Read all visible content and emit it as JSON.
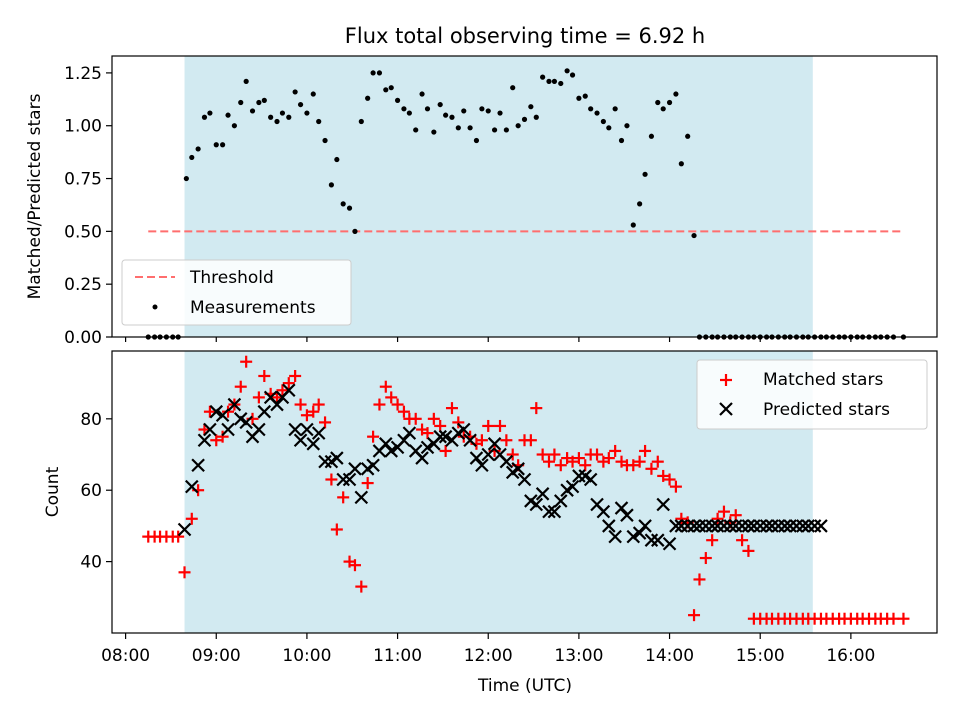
{
  "figure": {
    "title": "Flux total observing time = 6.92 h",
    "xlabel": "Time (UTC)"
  },
  "colors": {
    "shade": "#add8e6",
    "threshold": "#ff6e6e",
    "matched": "#ff0000",
    "predicted": "#000000",
    "measurement": "#000000"
  },
  "chart_data": [
    {
      "type": "scatter",
      "panel": "top",
      "ylabel": "Matched/Predicted stars",
      "xlim_hours": [
        7.85,
        16.95
      ],
      "ylim": [
        0.0,
        1.33
      ],
      "yticks": [
        0.0,
        0.25,
        0.5,
        0.75,
        1.0,
        1.25
      ],
      "ytick_labels": [
        "0.00",
        "0.25",
        "0.50",
        "0.75",
        "1.00",
        "1.25"
      ],
      "grid": false,
      "legend_position": "lower-left",
      "shaded_interval_hours": [
        8.65,
        15.58
      ],
      "threshold": {
        "name": "Threshold",
        "value": 0.5,
        "x_range_hours": [
          8.25,
          16.58
        ]
      },
      "series": [
        {
          "name": "Measurements",
          "marker": "dot",
          "x_hours": [
            8.25,
            8.32,
            8.38,
            8.45,
            8.52,
            8.58,
            8.67,
            8.73,
            8.8,
            8.87,
            8.93,
            9.0,
            9.07,
            9.13,
            9.2,
            9.27,
            9.33,
            9.4,
            9.47,
            9.53,
            9.6,
            9.67,
            9.73,
            9.8,
            9.87,
            9.93,
            10.0,
            10.07,
            10.13,
            10.2,
            10.27,
            10.33,
            10.4,
            10.47,
            10.53,
            10.6,
            10.67,
            10.73,
            10.8,
            10.87,
            10.93,
            11.0,
            11.07,
            11.13,
            11.2,
            11.27,
            11.33,
            11.4,
            11.47,
            11.53,
            11.6,
            11.67,
            11.73,
            11.8,
            11.87,
            11.93,
            12.0,
            12.07,
            12.13,
            12.2,
            12.27,
            12.33,
            12.4,
            12.47,
            12.53,
            12.6,
            12.67,
            12.73,
            12.8,
            12.87,
            12.93,
            13.0,
            13.07,
            13.13,
            13.2,
            13.27,
            13.33,
            13.4,
            13.47,
            13.53,
            13.6,
            13.67,
            13.73,
            13.8,
            13.87,
            13.93,
            14.0,
            14.07,
            14.13,
            14.2,
            14.27,
            14.33,
            14.4,
            14.47,
            14.53,
            14.6,
            14.67,
            14.73,
            14.8,
            14.87,
            14.93,
            15.0,
            15.07,
            15.13,
            15.2,
            15.27,
            15.33,
            15.4,
            15.47,
            15.53,
            15.6,
            15.67,
            15.73,
            15.8,
            15.87,
            15.93,
            16.0,
            16.07,
            16.13,
            16.2,
            16.27,
            16.33,
            16.4,
            16.47,
            16.58
          ],
          "y": [
            0.0,
            0.0,
            0.0,
            0.0,
            0.0,
            0.0,
            0.75,
            0.85,
            0.89,
            1.04,
            1.06,
            0.91,
            0.91,
            1.05,
            1.0,
            1.11,
            1.21,
            1.07,
            1.11,
            1.12,
            1.04,
            1.02,
            1.06,
            1.04,
            1.16,
            1.1,
            1.06,
            1.15,
            1.02,
            0.93,
            0.72,
            0.84,
            0.63,
            0.61,
            0.5,
            1.02,
            1.13,
            1.25,
            1.25,
            1.17,
            1.18,
            1.12,
            1.08,
            1.06,
            0.98,
            1.15,
            1.08,
            0.97,
            1.1,
            1.05,
            1.04,
            0.99,
            1.07,
            0.99,
            0.93,
            1.08,
            1.07,
            0.98,
            1.06,
            0.98,
            1.18,
            1.0,
            1.03,
            1.09,
            1.04,
            1.23,
            1.21,
            1.21,
            1.2,
            1.26,
            1.24,
            1.13,
            1.14,
            1.08,
            1.06,
            1.02,
            0.99,
            1.08,
            0.93,
            1.0,
            0.53,
            0.63,
            0.77,
            0.95,
            1.11,
            1.08,
            1.11,
            1.15,
            0.82,
            0.95,
            0.48,
            0.0,
            0.0,
            0.0,
            0.0,
            0.0,
            0.0,
            0.0,
            0.0,
            0.0,
            0.0,
            0.0,
            0.0,
            0.0,
            0.0,
            0.0,
            0.0,
            0.0,
            0.0,
            0.0,
            0.0,
            0.0,
            0.0,
            0.0,
            0.0,
            0.0,
            0.0,
            0.0,
            0.0,
            0.0,
            0.0,
            0.0,
            0.0,
            0.0,
            0.0
          ]
        }
      ]
    },
    {
      "type": "scatter",
      "panel": "bottom",
      "ylabel": "Count",
      "xlim_hours": [
        7.85,
        16.95
      ],
      "ylim": [
        20,
        99
      ],
      "yticks": [
        40,
        60,
        80
      ],
      "ytick_labels": [
        "40",
        "60",
        "80"
      ],
      "xticks_hours": [
        8,
        9,
        10,
        11,
        12,
        13,
        14,
        15,
        16
      ],
      "xtick_labels": [
        "08:00",
        "09:00",
        "10:00",
        "11:00",
        "12:00",
        "13:00",
        "14:00",
        "15:00",
        "16:00"
      ],
      "grid": false,
      "legend_position": "upper-right",
      "shaded_interval_hours": [
        8.65,
        15.58
      ],
      "series": [
        {
          "name": "Matched stars",
          "marker": "plus",
          "x_hours": [
            8.25,
            8.32,
            8.38,
            8.45,
            8.52,
            8.58,
            8.65,
            8.73,
            8.8,
            8.87,
            8.93,
            9.0,
            9.07,
            9.13,
            9.2,
            9.27,
            9.33,
            9.4,
            9.47,
            9.53,
            9.6,
            9.67,
            9.73,
            9.8,
            9.87,
            9.93,
            10.0,
            10.07,
            10.13,
            10.2,
            10.27,
            10.33,
            10.4,
            10.47,
            10.53,
            10.6,
            10.67,
            10.73,
            10.8,
            10.87,
            10.93,
            11.0,
            11.07,
            11.13,
            11.2,
            11.27,
            11.33,
            11.4,
            11.47,
            11.53,
            11.6,
            11.67,
            11.73,
            11.8,
            11.87,
            11.93,
            12.0,
            12.07,
            12.13,
            12.2,
            12.27,
            12.33,
            12.4,
            12.47,
            12.53,
            12.6,
            12.67,
            12.73,
            12.8,
            12.87,
            12.93,
            13.0,
            13.07,
            13.13,
            13.2,
            13.27,
            13.33,
            13.4,
            13.47,
            13.53,
            13.6,
            13.67,
            13.73,
            13.8,
            13.87,
            13.93,
            14.0,
            14.07,
            14.13,
            14.2,
            14.27,
            14.33,
            14.4,
            14.47,
            14.53,
            14.6,
            14.67,
            14.73,
            14.8,
            14.87,
            14.93,
            15.0,
            15.07,
            15.13,
            15.2,
            15.27,
            15.33,
            15.4,
            15.47,
            15.53,
            15.6,
            15.67,
            15.73,
            15.8,
            15.87,
            15.93,
            16.0,
            16.07,
            16.13,
            16.2,
            16.27,
            16.33,
            16.4,
            16.47,
            16.58
          ],
          "y": [
            47,
            47,
            47,
            47,
            47,
            47,
            37,
            52,
            60,
            77,
            82,
            74,
            75,
            82,
            84,
            89,
            96,
            80,
            86,
            92,
            87,
            86,
            88,
            90,
            92,
            84,
            81,
            82,
            84,
            79,
            63,
            49,
            58,
            40,
            39,
            33,
            62,
            75,
            84,
            89,
            86,
            84,
            82,
            80,
            80,
            77,
            76,
            80,
            78,
            71,
            83,
            79,
            75,
            75,
            73,
            74,
            78,
            71,
            78,
            74,
            70,
            67,
            74,
            74,
            83,
            70,
            68,
            70,
            67,
            69,
            68,
            69,
            67,
            70,
            70,
            68,
            69,
            71,
            68,
            67,
            67,
            68,
            71,
            66,
            68,
            64,
            63,
            61,
            52,
            51,
            25,
            35,
            41,
            46,
            52,
            54,
            51,
            53,
            46,
            43,
            24,
            24,
            24,
            24,
            24,
            24,
            24,
            24,
            24,
            24,
            24,
            24,
            24,
            24,
            24,
            24,
            24,
            24,
            24,
            24,
            24,
            24,
            24,
            24,
            24
          ]
        },
        {
          "name": "Predicted stars",
          "marker": "x",
          "x_hours": [
            8.65,
            8.73,
            8.8,
            8.87,
            8.93,
            9.0,
            9.07,
            9.13,
            9.2,
            9.27,
            9.33,
            9.4,
            9.47,
            9.53,
            9.6,
            9.67,
            9.73,
            9.8,
            9.87,
            9.93,
            10.0,
            10.07,
            10.13,
            10.2,
            10.27,
            10.33,
            10.4,
            10.47,
            10.53,
            10.6,
            10.67,
            10.73,
            10.8,
            10.87,
            10.93,
            11.0,
            11.07,
            11.13,
            11.2,
            11.27,
            11.33,
            11.4,
            11.47,
            11.53,
            11.6,
            11.67,
            11.73,
            11.8,
            11.87,
            11.93,
            12.0,
            12.07,
            12.13,
            12.2,
            12.27,
            12.33,
            12.4,
            12.47,
            12.53,
            12.6,
            12.67,
            12.73,
            12.8,
            12.87,
            12.93,
            13.0,
            13.07,
            13.13,
            13.2,
            13.27,
            13.33,
            13.4,
            13.47,
            13.53,
            13.6,
            13.67,
            13.73,
            13.8,
            13.87,
            13.93,
            14.0,
            14.07,
            14.13,
            14.2,
            14.27,
            14.33,
            14.4,
            14.47,
            14.53,
            14.6,
            14.67,
            14.73,
            14.8,
            14.87,
            14.93,
            15.0,
            15.07,
            15.13,
            15.2,
            15.27,
            15.33,
            15.4,
            15.47,
            15.53,
            15.6,
            15.67
          ],
          "y": [
            49,
            61,
            67,
            74,
            77,
            82,
            81,
            77,
            84,
            80,
            79,
            75,
            77,
            82,
            86,
            84,
            86,
            88,
            77,
            74,
            77,
            73,
            76,
            68,
            68,
            69,
            63,
            63,
            66,
            58,
            66,
            67,
            71,
            73,
            71,
            72,
            74,
            76,
            71,
            69,
            72,
            73,
            75,
            75,
            74,
            76,
            77,
            74,
            69,
            67,
            70,
            73,
            70,
            68,
            65,
            66,
            63,
            57,
            56,
            59,
            54,
            54,
            57,
            60,
            61,
            64,
            64,
            63,
            56,
            54,
            50,
            47,
            55,
            53,
            47,
            48,
            50,
            46,
            46,
            56,
            45,
            50,
            50,
            50,
            50,
            50,
            50,
            50,
            50,
            50,
            50,
            50,
            50,
            50,
            50,
            50,
            50,
            50,
            50,
            50,
            50,
            50,
            50,
            50,
            50,
            50
          ]
        }
      ]
    }
  ]
}
